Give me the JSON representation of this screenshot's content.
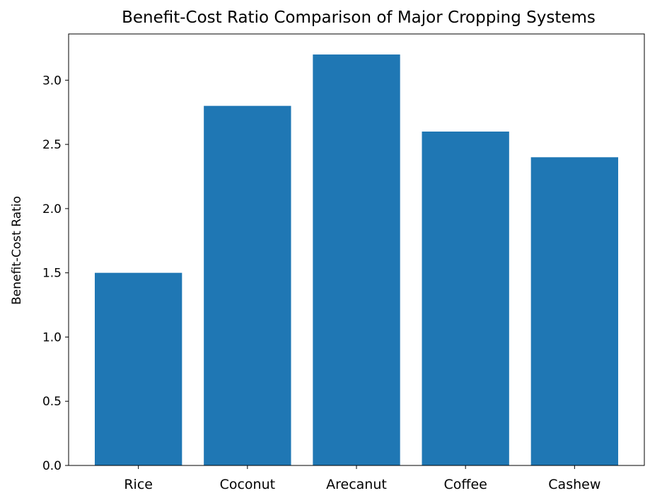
{
  "chart_data": {
    "type": "bar",
    "title": "Benefit-Cost Ratio Comparison of Major Cropping Systems",
    "xlabel": "",
    "ylabel": "Benefit-Cost Ratio",
    "categories": [
      "Rice",
      "Coconut",
      "Arecanut",
      "Coffee",
      "Cashew"
    ],
    "values": [
      1.5,
      2.8,
      3.2,
      2.6,
      2.4
    ],
    "ylim": [
      0,
      3.36
    ],
    "yticks": [
      "0.0",
      "0.5",
      "1.0",
      "1.5",
      "2.0",
      "2.5",
      "3.0"
    ],
    "bar_color": "#1f77b4",
    "grid": false,
    "legend": "none"
  }
}
